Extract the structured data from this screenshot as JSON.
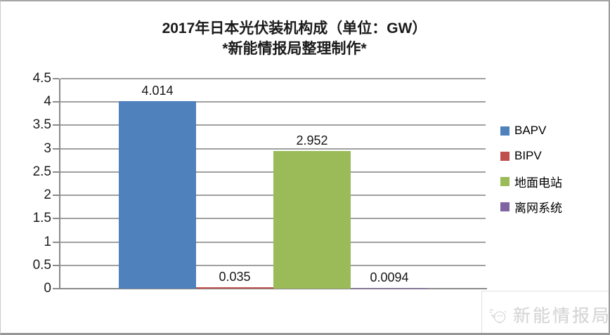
{
  "title": {
    "line1": "2017年日本光伏装机构成（单位：GW）",
    "line2": "*新能情报局整理制作*"
  },
  "chart_data": {
    "type": "bar",
    "title": "2017年日本光伏装机构成（单位：GW）",
    "subtitle": "*新能情报局整理制作*",
    "unit": "GW",
    "categories": [
      "BAPV",
      "BIPV",
      "地面电站",
      "离网系统"
    ],
    "series_ids": [
      "bapv",
      "bipv",
      "ground-pv",
      "off-grid"
    ],
    "values": [
      4.014,
      0.035,
      2.952,
      0.0094
    ],
    "data_labels": [
      "4.014",
      "0.035",
      "2.952",
      "0.0094"
    ],
    "colors": [
      "#4F81BD",
      "#C0504D",
      "#9BBB59",
      "#8064A2"
    ],
    "ylim": [
      0,
      4.5
    ],
    "ytick_step": 0.5,
    "ytick_labels": [
      "0",
      "0.5",
      "1",
      "1.5",
      "2",
      "2.5",
      "3",
      "3.5",
      "4",
      "4.5"
    ],
    "grid": true,
    "legend_position": "right"
  },
  "legend": {
    "items": [
      {
        "label": "BAPV",
        "color": "#4F81BD"
      },
      {
        "label": "BIPV",
        "color": "#C0504D"
      },
      {
        "label": "地面电站",
        "color": "#9BBB59"
      },
      {
        "label": "离网系统",
        "color": "#8064A2"
      }
    ]
  },
  "watermark": {
    "text": "新能情报局",
    "icon": "chick-bird-icon"
  }
}
